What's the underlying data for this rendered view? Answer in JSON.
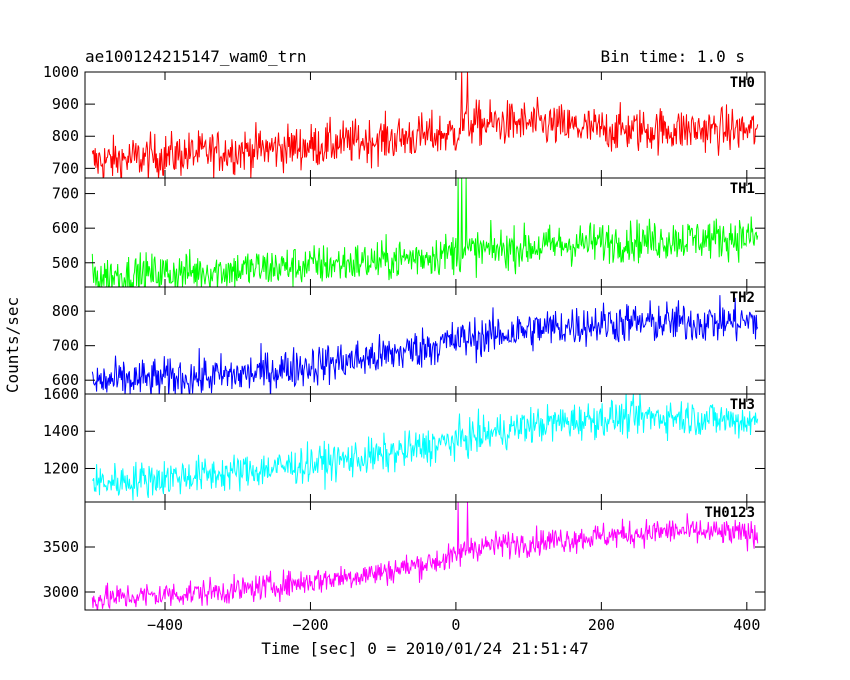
{
  "header": {
    "title": "ae100124215147_wam0_trn",
    "bin_time": "Bin time: 1.0 s"
  },
  "axes": {
    "xlabel": "Time [sec] 0 = 2010/01/24 21:51:47",
    "ylabel": "Counts/sec"
  },
  "chart_data": {
    "type": "line",
    "x_range": [
      -510,
      425
    ],
    "x_ticks": [
      -400,
      -200,
      0,
      200,
      400
    ],
    "x_tick_labels": [
      "−400",
      "−200",
      "0",
      "200",
      "400"
    ],
    "panels": [
      {
        "label": "TH0",
        "color": "#ff0000",
        "ylim": [
          670,
          1000
        ],
        "y_ticks": [
          700,
          800,
          900,
          1000
        ],
        "trend": [
          [
            -500,
            720
          ],
          [
            -400,
            740
          ],
          [
            -200,
            770
          ],
          [
            0,
            810
          ],
          [
            10,
            840
          ],
          [
            100,
            840
          ],
          [
            200,
            820
          ],
          [
            415,
            820
          ]
        ],
        "noise": 35,
        "spikes": [
          [
            8,
            1000
          ],
          [
            16,
            1000
          ]
        ]
      },
      {
        "label": "TH1",
        "color": "#00ff00",
        "ylim": [
          430,
          745
        ],
        "y_ticks": [
          500,
          600,
          700
        ],
        "trend": [
          [
            -500,
            460
          ],
          [
            -300,
            480
          ],
          [
            -100,
            505
          ],
          [
            0,
            530
          ],
          [
            200,
            560
          ],
          [
            415,
            575
          ]
        ],
        "noise": 30,
        "spikes": [
          [
            3,
            745
          ],
          [
            8,
            745
          ],
          [
            14,
            745
          ]
        ]
      },
      {
        "label": "TH2",
        "color": "#0000ff",
        "ylim": [
          560,
          870
        ],
        "y_ticks": [
          600,
          700,
          800
        ],
        "trend": [
          [
            -500,
            595
          ],
          [
            -300,
            615
          ],
          [
            -100,
            670
          ],
          [
            0,
            715
          ],
          [
            100,
            745
          ],
          [
            200,
            765
          ],
          [
            415,
            770
          ]
        ],
        "noise": 30,
        "spikes": []
      },
      {
        "label": "TH3",
        "color": "#00ffff",
        "ylim": [
          1020,
          1600
        ],
        "y_ticks": [
          1200,
          1400,
          1600
        ],
        "trend": [
          [
            -500,
            1120
          ],
          [
            -300,
            1180
          ],
          [
            -100,
            1270
          ],
          [
            0,
            1350
          ],
          [
            100,
            1430
          ],
          [
            200,
            1470
          ],
          [
            300,
            1480
          ],
          [
            415,
            1450
          ]
        ],
        "noise": 50,
        "spikes": []
      },
      {
        "label": "TH0123",
        "color": "#ff00ff",
        "ylim": [
          2800,
          4000
        ],
        "y_ticks": [
          3000,
          3500
        ],
        "trend": [
          [
            -500,
            2920
          ],
          [
            -300,
            3020
          ],
          [
            -100,
            3220
          ],
          [
            0,
            3390
          ],
          [
            20,
            3500
          ],
          [
            200,
            3620
          ],
          [
            300,
            3680
          ],
          [
            415,
            3640
          ]
        ],
        "noise": 75,
        "spikes": [
          [
            3,
            4000
          ],
          [
            16,
            4000
          ]
        ]
      }
    ]
  }
}
